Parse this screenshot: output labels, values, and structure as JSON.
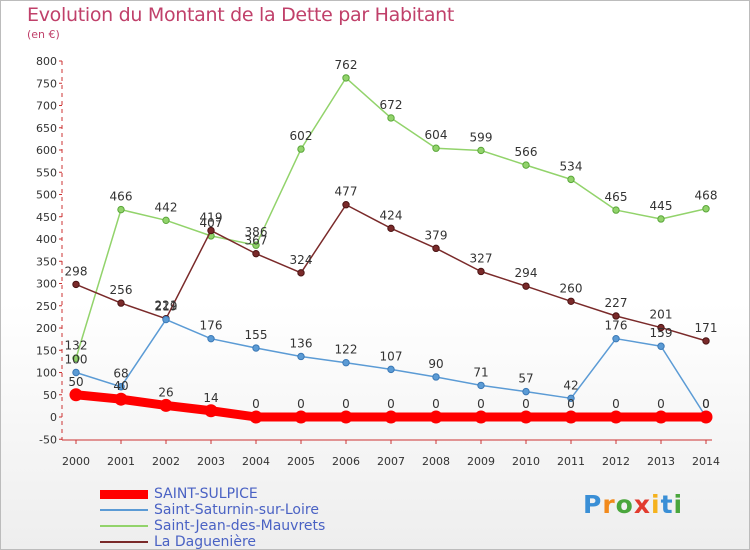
{
  "header": {
    "title": "Evolution du Montant de la Dette par Habitant",
    "unit": "(en €)"
  },
  "logo": {
    "text": "Proxiti"
  },
  "chart_data": {
    "type": "line",
    "title": "Evolution du Montant de la Dette par Habitant",
    "ylabel": "(en €)",
    "xlabel": "",
    "x": [
      2000,
      2001,
      2002,
      2003,
      2004,
      2005,
      2006,
      2007,
      2008,
      2009,
      2010,
      2011,
      2012,
      2013,
      2014
    ],
    "ylim": [
      -50,
      800
    ],
    "yticks": [
      -50,
      0,
      50,
      100,
      150,
      200,
      250,
      300,
      350,
      400,
      450,
      500,
      550,
      600,
      650,
      700,
      750,
      800
    ],
    "grid": false,
    "legend_position": "bottom-left",
    "series": [
      {
        "name": "SAINT-SULPICE",
        "color": "#ff0000",
        "values": [
          50,
          40,
          26,
          14,
          0,
          0,
          0,
          0,
          0,
          0,
          0,
          0,
          0,
          0,
          0
        ]
      },
      {
        "name": "Saint-Saturnin-sur-Loire",
        "color": "#5b9bd5",
        "values": [
          100,
          68,
          219,
          176,
          155,
          136,
          122,
          107,
          90,
          71,
          57,
          42,
          176,
          159,
          0
        ]
      },
      {
        "name": "Saint-Jean-des-Mauvrets",
        "color": "#92d36b",
        "values": [
          132,
          466,
          442,
          407,
          386,
          602,
          762,
          672,
          604,
          599,
          566,
          534,
          465,
          445,
          468
        ]
      },
      {
        "name": "La Daguenière",
        "color": "#7a2a2a",
        "values": [
          298,
          256,
          221,
          419,
          367,
          324,
          477,
          424,
          379,
          327,
          294,
          260,
          227,
          201,
          171
        ]
      }
    ]
  }
}
